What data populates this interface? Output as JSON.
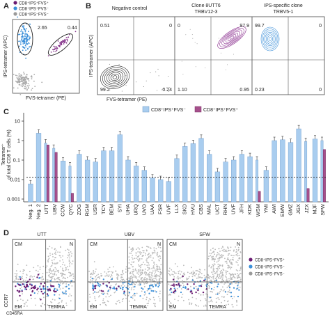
{
  "panel_a": {
    "letter": "A",
    "legend": [
      "CD8⁺IPS⁺FVS⁺",
      "CD8⁺IPS⁺FVS⁻",
      "CD8⁺IPS⁻FVS⁻"
    ],
    "legend_colors": [
      "#6a1b72",
      "#3b8fd9",
      "#9a9a9a"
    ],
    "ylabel": "IPS-tetramer (APC)",
    "xlabel": "FVS-tetramer (PE)",
    "val_left": "2.65",
    "val_right": "0.44"
  },
  "panel_b": {
    "letter": "B",
    "ylabel": "IPS-tetramer (APC)",
    "xlabel": "FVS-tetramer (PE)",
    "plots": [
      {
        "title": "Negative control",
        "subtitle": "",
        "q": [
          "0.51",
          "0",
          "99.2",
          "0.24"
        ]
      },
      {
        "title": "Clone 8UTT6",
        "subtitle": "TRBV12-3",
        "q": [
          "0",
          "97.9",
          "1.10",
          "0.95"
        ]
      },
      {
        "title": "IPS-specific clone",
        "subtitle": "TRBV5-1",
        "q": [
          "99.7",
          "0",
          "0.23",
          "0"
        ]
      }
    ]
  },
  "panel_c": {
    "letter": "C",
    "legend": [
      "CD8⁺IPS⁺FVS⁻",
      "CD8⁺IPS⁺FVS⁺"
    ],
    "colors": [
      "#a9cdef",
      "#a6508c"
    ]
  },
  "chart_data": {
    "type": "bar",
    "ylabel_top": "Tetramer⁺",
    "ylabel": "of total CD8 T cells (%)",
    "yscale": "log",
    "ylim": [
      0.001,
      10
    ],
    "yticks": [
      "10",
      "1",
      "0.1",
      "0.01",
      "0.001"
    ],
    "threshold": 0.013,
    "categories": [
      "Neg. 1",
      "Neg. 2",
      "UTT",
      "UBV",
      "CCW",
      "QYC",
      "ZOG",
      "RGM",
      "USR",
      "TCY",
      "BEM",
      "SYI",
      "UHA",
      "URQ",
      "UVO",
      "UAA",
      "FSR",
      "UVF",
      "LLX",
      "SKD",
      "HVU",
      "CBS",
      "MAL",
      "UCT",
      "RHN",
      "UVF",
      "JFH",
      "KDK",
      "WSM",
      "YMI",
      "AWI",
      "EMW",
      "GMZ",
      "JGX",
      "JZX",
      "MJF",
      "SFW"
    ],
    "series": [
      {
        "name": "CD8⁺IPS⁺FVS⁻",
        "values": [
          0.006,
          2.4,
          0.75,
          0.4,
          0.09,
          0.05,
          0.2,
          0.1,
          0.08,
          0.3,
          0.3,
          2.0,
          0.1,
          0.05,
          0.03,
          0.012,
          0.01,
          0.008,
          0.12,
          0.5,
          0.7,
          1.3,
          0.2,
          0.025,
          0.08,
          0.1,
          0.2,
          0.15,
          0.1,
          0.03,
          1.0,
          1.1,
          0.8,
          4.0,
          0.9,
          1.2,
          1.0
        ]
      },
      {
        "name": "CD8⁺IPS⁺FVS⁺",
        "values": [
          null,
          null,
          0.6,
          0.25,
          null,
          0.002,
          null,
          null,
          null,
          null,
          null,
          null,
          null,
          null,
          null,
          null,
          null,
          null,
          null,
          null,
          null,
          null,
          null,
          null,
          null,
          null,
          null,
          null,
          0.0025,
          null,
          null,
          null,
          null,
          null,
          0.0035,
          null,
          0.35
        ]
      }
    ]
  },
  "panel_d": {
    "letter": "D",
    "titles": [
      "UTT",
      "UBV",
      "SFW"
    ],
    "quadrants": [
      "CM",
      "N",
      "EM",
      "TEMRA"
    ],
    "ylabel": "CCR7",
    "xlabel": "CD45RA",
    "legend": [
      "CD8⁺IPS⁺FVS⁺",
      "CD8⁺IPS⁺FVS⁻",
      "CD8⁺IPS⁻FVS⁻"
    ],
    "legend_colors": [
      "#6a1b72",
      "#3b8fd9",
      "#9a9a9a"
    ]
  }
}
